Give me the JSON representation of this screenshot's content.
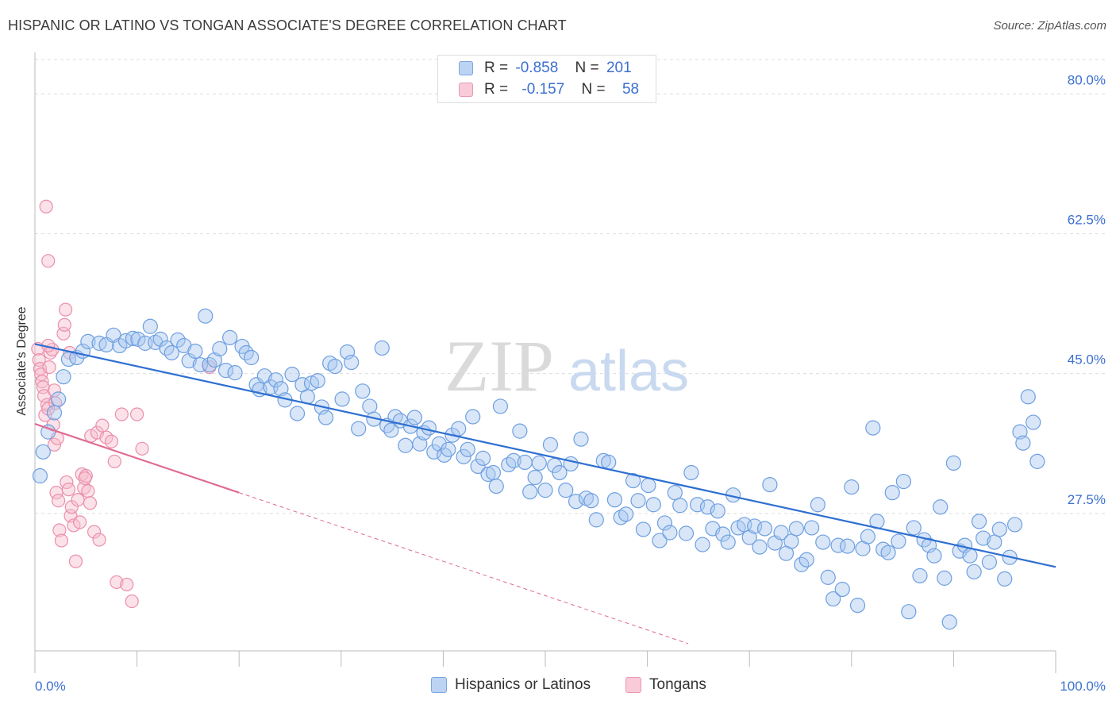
{
  "header": {
    "title": "HISPANIC OR LATINO VS TONGAN ASSOCIATE'S DEGREE CORRELATION CHART",
    "source": "Source: ZipAtlas.com"
  },
  "legend_top": {
    "rows": [
      {
        "r_label": "R =",
        "r_value": "-0.858",
        "n_label": "N =",
        "n_value": "201"
      },
      {
        "r_label": "R =",
        "r_value": "-0.157",
        "n_label": "N =",
        "n_value": "58"
      }
    ]
  },
  "legend_bottom": {
    "items": [
      {
        "label": "Hispanics or Latinos"
      },
      {
        "label": "Tongans"
      }
    ]
  },
  "watermark": {
    "zip": "ZIP",
    "atlas": "atlas"
  },
  "colors": {
    "blue_fill": "#a9c7f0",
    "blue_stroke": "#6e9fe0",
    "blue_line": "#2e6fd1",
    "pink_fill": "#f6bccd",
    "pink_stroke": "#eb8fac",
    "pink_line": "#e06b90",
    "tick_label": "#3b6fd1",
    "grid": "#dddddd"
  },
  "chart_data": {
    "type": "scatter",
    "title": "HISPANIC OR LATINO VS TONGAN ASSOCIATE'S DEGREE CORRELATION CHART",
    "xlabel": "",
    "ylabel": "Associate's Degree",
    "xlim": [
      0,
      100
    ],
    "ylim": [
      10.3,
      84.3
    ],
    "x_tick_labels": [
      "0.0%",
      "100.0%"
    ],
    "y_ticks": [
      27.5,
      45.0,
      62.5,
      80.0
    ],
    "y_tick_labels": [
      "27.5%",
      "45.0%",
      "62.5%",
      "80.0%"
    ],
    "grid": true,
    "legend_position": "top-center",
    "series": [
      {
        "name": "Hispanics or Latinos",
        "color": "#6e9fe0",
        "R": -0.858,
        "N": 201,
        "trend": {
          "x": [
            0,
            100
          ],
          "y": [
            48.7,
            20.8
          ]
        },
        "points": [
          [
            0.5,
            32.2
          ],
          [
            0.8,
            35.2
          ],
          [
            1.3,
            37.7
          ],
          [
            1.9,
            40.1
          ],
          [
            2.3,
            41.8
          ],
          [
            2.8,
            44.6
          ],
          [
            3.3,
            46.8
          ],
          [
            4.1,
            47.0
          ],
          [
            4.7,
            47.8
          ],
          [
            5.2,
            49.0
          ],
          [
            6.3,
            48.8
          ],
          [
            7.0,
            48.6
          ],
          [
            7.7,
            49.8
          ],
          [
            8.3,
            48.5
          ],
          [
            8.9,
            49.1
          ],
          [
            9.6,
            49.4
          ],
          [
            10.1,
            49.3
          ],
          [
            10.8,
            48.8
          ],
          [
            11.3,
            50.9
          ],
          [
            11.8,
            48.9
          ],
          [
            12.3,
            49.3
          ],
          [
            12.9,
            48.2
          ],
          [
            13.4,
            47.6
          ],
          [
            14.0,
            49.2
          ],
          [
            14.6,
            48.5
          ],
          [
            15.1,
            46.6
          ],
          [
            15.7,
            47.8
          ],
          [
            16.2,
            46.1
          ],
          [
            16.7,
            52.2
          ],
          [
            17.1,
            46.1
          ],
          [
            17.6,
            46.7
          ],
          [
            18.1,
            48.1
          ],
          [
            18.7,
            45.4
          ],
          [
            19.1,
            49.5
          ],
          [
            19.6,
            45.1
          ],
          [
            20.3,
            48.4
          ],
          [
            20.7,
            47.6
          ],
          [
            21.2,
            47.0
          ],
          [
            21.7,
            43.6
          ],
          [
            22.0,
            43.0
          ],
          [
            22.5,
            44.7
          ],
          [
            23.1,
            43.3
          ],
          [
            23.6,
            44.2
          ],
          [
            24.1,
            43.1
          ],
          [
            24.5,
            41.7
          ],
          [
            25.2,
            44.9
          ],
          [
            25.7,
            40.0
          ],
          [
            26.2,
            43.6
          ],
          [
            26.7,
            42.1
          ],
          [
            27.1,
            43.8
          ],
          [
            27.7,
            44.1
          ],
          [
            28.1,
            40.8
          ],
          [
            28.5,
            39.5
          ],
          [
            28.9,
            46.3
          ],
          [
            29.4,
            45.9
          ],
          [
            30.1,
            41.8
          ],
          [
            30.6,
            47.7
          ],
          [
            31.0,
            46.4
          ],
          [
            31.7,
            38.1
          ],
          [
            32.1,
            42.8
          ],
          [
            32.8,
            40.9
          ],
          [
            33.2,
            39.3
          ],
          [
            34.0,
            48.2
          ],
          [
            34.5,
            38.5
          ],
          [
            34.9,
            37.9
          ],
          [
            35.3,
            39.6
          ],
          [
            35.8,
            39.1
          ],
          [
            36.3,
            36.0
          ],
          [
            36.8,
            38.4
          ],
          [
            37.2,
            39.5
          ],
          [
            37.7,
            36.2
          ],
          [
            38.1,
            37.6
          ],
          [
            38.6,
            38.2
          ],
          [
            39.1,
            35.2
          ],
          [
            39.6,
            36.2
          ],
          [
            40.1,
            34.8
          ],
          [
            40.5,
            35.5
          ],
          [
            40.9,
            37.3
          ],
          [
            41.5,
            38.1
          ],
          [
            42.0,
            34.6
          ],
          [
            42.4,
            35.5
          ],
          [
            42.9,
            39.6
          ],
          [
            43.4,
            33.4
          ],
          [
            43.9,
            34.4
          ],
          [
            44.4,
            32.4
          ],
          [
            44.9,
            32.6
          ],
          [
            45.2,
            30.9
          ],
          [
            45.6,
            40.9
          ],
          [
            46.4,
            33.6
          ],
          [
            46.9,
            34.1
          ],
          [
            47.5,
            37.8
          ],
          [
            48.0,
            33.9
          ],
          [
            48.5,
            30.2
          ],
          [
            49.0,
            32.0
          ],
          [
            49.4,
            33.8
          ],
          [
            50.0,
            30.4
          ],
          [
            50.5,
            36.1
          ],
          [
            50.9,
            33.5
          ],
          [
            51.4,
            32.6
          ],
          [
            52.0,
            30.4
          ],
          [
            52.5,
            33.7
          ],
          [
            53.0,
            29.0
          ],
          [
            53.5,
            36.8
          ],
          [
            54.0,
            29.4
          ],
          [
            54.5,
            29.1
          ],
          [
            55.0,
            26.7
          ],
          [
            55.7,
            34.1
          ],
          [
            56.2,
            33.9
          ],
          [
            56.8,
            29.2
          ],
          [
            57.4,
            27.0
          ],
          [
            57.9,
            27.4
          ],
          [
            58.6,
            31.6
          ],
          [
            59.1,
            29.1
          ],
          [
            59.6,
            25.5
          ],
          [
            60.1,
            31.0
          ],
          [
            60.6,
            28.6
          ],
          [
            61.2,
            24.1
          ],
          [
            61.7,
            26.3
          ],
          [
            62.2,
            25.1
          ],
          [
            62.7,
            30.1
          ],
          [
            63.2,
            28.5
          ],
          [
            63.8,
            25.0
          ],
          [
            64.3,
            32.6
          ],
          [
            64.9,
            28.6
          ],
          [
            65.4,
            23.6
          ],
          [
            65.9,
            28.3
          ],
          [
            66.4,
            25.6
          ],
          [
            66.9,
            27.8
          ],
          [
            67.4,
            24.9
          ],
          [
            67.9,
            23.9
          ],
          [
            68.4,
            29.8
          ],
          [
            68.9,
            25.7
          ],
          [
            69.5,
            26.1
          ],
          [
            70.0,
            24.5
          ],
          [
            70.5,
            25.9
          ],
          [
            71.0,
            23.3
          ],
          [
            71.5,
            25.6
          ],
          [
            72.0,
            31.1
          ],
          [
            72.5,
            23.8
          ],
          [
            73.1,
            25.1
          ],
          [
            73.6,
            22.5
          ],
          [
            74.1,
            24.0
          ],
          [
            74.6,
            25.6
          ],
          [
            75.1,
            21.1
          ],
          [
            75.6,
            21.7
          ],
          [
            76.1,
            25.7
          ],
          [
            76.7,
            28.6
          ],
          [
            77.2,
            23.9
          ],
          [
            77.7,
            19.5
          ],
          [
            78.2,
            16.8
          ],
          [
            78.7,
            23.5
          ],
          [
            79.1,
            18.0
          ],
          [
            79.6,
            23.4
          ],
          [
            80.0,
            30.8
          ],
          [
            80.6,
            16.0
          ],
          [
            81.1,
            23.1
          ],
          [
            81.6,
            24.6
          ],
          [
            82.1,
            38.2
          ],
          [
            82.5,
            26.5
          ],
          [
            83.1,
            23.0
          ],
          [
            83.6,
            22.6
          ],
          [
            84.0,
            30.1
          ],
          [
            84.6,
            24.0
          ],
          [
            85.1,
            31.5
          ],
          [
            85.6,
            15.2
          ],
          [
            86.1,
            25.7
          ],
          [
            86.7,
            19.7
          ],
          [
            87.1,
            24.2
          ],
          [
            87.6,
            23.5
          ],
          [
            88.1,
            22.2
          ],
          [
            88.7,
            28.3
          ],
          [
            89.1,
            19.4
          ],
          [
            89.6,
            13.9
          ],
          [
            90.0,
            33.8
          ],
          [
            90.6,
            22.8
          ],
          [
            91.1,
            23.5
          ],
          [
            91.6,
            22.2
          ],
          [
            92.0,
            20.2
          ],
          [
            92.5,
            26.5
          ],
          [
            92.9,
            24.4
          ],
          [
            93.5,
            21.4
          ],
          [
            94.0,
            23.9
          ],
          [
            94.5,
            25.5
          ],
          [
            95.0,
            19.3
          ],
          [
            95.5,
            22.0
          ],
          [
            96.0,
            26.1
          ],
          [
            96.5,
            37.7
          ],
          [
            96.8,
            36.3
          ],
          [
            97.3,
            42.1
          ],
          [
            97.8,
            38.9
          ],
          [
            98.2,
            34.0
          ]
        ]
      },
      {
        "name": "Tongans",
        "color": "#eb8fac",
        "R": -0.157,
        "N": 58,
        "trend": {
          "x": [
            0,
            20
          ],
          "y": [
            38.7,
            30.1
          ]
        },
        "trend_extension": {
          "x": [
            20,
            64
          ],
          "y": [
            30.1,
            11.2
          ]
        },
        "points": [
          [
            0.3,
            48.1
          ],
          [
            0.4,
            46.7
          ],
          [
            0.5,
            45.6
          ],
          [
            0.6,
            44.9
          ],
          [
            0.7,
            44.0
          ],
          [
            0.8,
            43.3
          ],
          [
            0.9,
            42.2
          ],
          [
            1.0,
            39.8
          ],
          [
            1.2,
            41.1
          ],
          [
            1.3,
            40.6
          ],
          [
            1.4,
            45.8
          ],
          [
            1.5,
            47.6
          ],
          [
            1.7,
            48.0
          ],
          [
            1.8,
            38.6
          ],
          [
            1.9,
            36.1
          ],
          [
            2.0,
            41.3
          ],
          [
            2.1,
            30.1
          ],
          [
            2.3,
            29.1
          ],
          [
            2.4,
            25.4
          ],
          [
            2.6,
            24.1
          ],
          [
            2.8,
            50.0
          ],
          [
            2.9,
            51.1
          ],
          [
            3.0,
            53.0
          ],
          [
            3.1,
            31.4
          ],
          [
            3.3,
            30.5
          ],
          [
            3.5,
            27.2
          ],
          [
            3.6,
            28.3
          ],
          [
            3.8,
            26.0
          ],
          [
            4.0,
            21.5
          ],
          [
            4.2,
            29.2
          ],
          [
            4.4,
            26.4
          ],
          [
            4.6,
            32.4
          ],
          [
            4.8,
            30.7
          ],
          [
            5.0,
            32.2
          ],
          [
            5.2,
            30.3
          ],
          [
            5.5,
            37.2
          ],
          [
            5.8,
            25.2
          ],
          [
            6.1,
            37.6
          ],
          [
            6.3,
            24.2
          ],
          [
            6.6,
            38.5
          ],
          [
            7.0,
            37.0
          ],
          [
            7.5,
            36.5
          ],
          [
            8.0,
            18.9
          ],
          [
            8.5,
            39.9
          ],
          [
            9.0,
            18.6
          ],
          [
            9.5,
            16.5
          ],
          [
            10.0,
            39.9
          ],
          [
            10.5,
            35.6
          ],
          [
            1.3,
            48.5
          ],
          [
            1.1,
            65.9
          ],
          [
            1.3,
            59.1
          ],
          [
            2.2,
            36.9
          ],
          [
            3.4,
            47.6
          ],
          [
            5.4,
            28.8
          ],
          [
            7.8,
            34.0
          ],
          [
            1.9,
            42.9
          ],
          [
            17.1,
            45.8
          ],
          [
            4.9,
            31.9
          ]
        ]
      }
    ]
  }
}
